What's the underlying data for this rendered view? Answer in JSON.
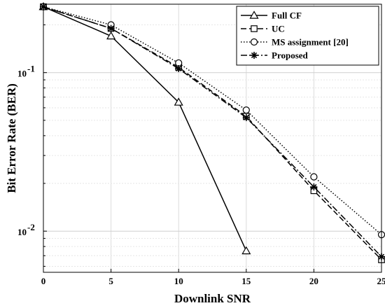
{
  "chart_data": {
    "type": "line",
    "title": "",
    "xlabel": "Downlink SNR",
    "ylabel": "Bit Error Rate (BER)",
    "x_ticks": [
      "0",
      "5",
      "10",
      "15",
      "20",
      "25"
    ],
    "y_ticks": [
      {
        "base": "10",
        "exp": "-2",
        "value": 0.01
      },
      {
        "base": "10",
        "exp": "-1",
        "value": 0.1
      }
    ],
    "xlim": [
      0,
      25
    ],
    "ylim": [
      0.0055,
      0.27
    ],
    "y_scale": "log",
    "grid": true,
    "legend_position": "top-right",
    "series": [
      {
        "name": "Full CF",
        "marker": "triangle",
        "dash": "solid",
        "x": [
          0,
          5,
          10,
          15
        ],
        "y": [
          0.26,
          0.17,
          0.065,
          0.0075
        ]
      },
      {
        "name": "UC",
        "marker": "square",
        "dash": "dashed",
        "x": [
          0,
          5,
          10,
          15,
          20,
          25
        ],
        "y": [
          0.26,
          0.19,
          0.108,
          0.053,
          0.018,
          0.0066
        ]
      },
      {
        "name": "MS assignment [20]",
        "marker": "circle",
        "dash": "dotted",
        "x": [
          0,
          5,
          10,
          15,
          20,
          25
        ],
        "y": [
          0.26,
          0.2,
          0.115,
          0.058,
          0.022,
          0.0095
        ]
      },
      {
        "name": "Proposed",
        "marker": "asterisk",
        "dash": "dashdot",
        "x": [
          0,
          5,
          10,
          15,
          20,
          25
        ],
        "y": [
          0.26,
          0.19,
          0.106,
          0.052,
          0.019,
          0.0069
        ]
      }
    ]
  }
}
